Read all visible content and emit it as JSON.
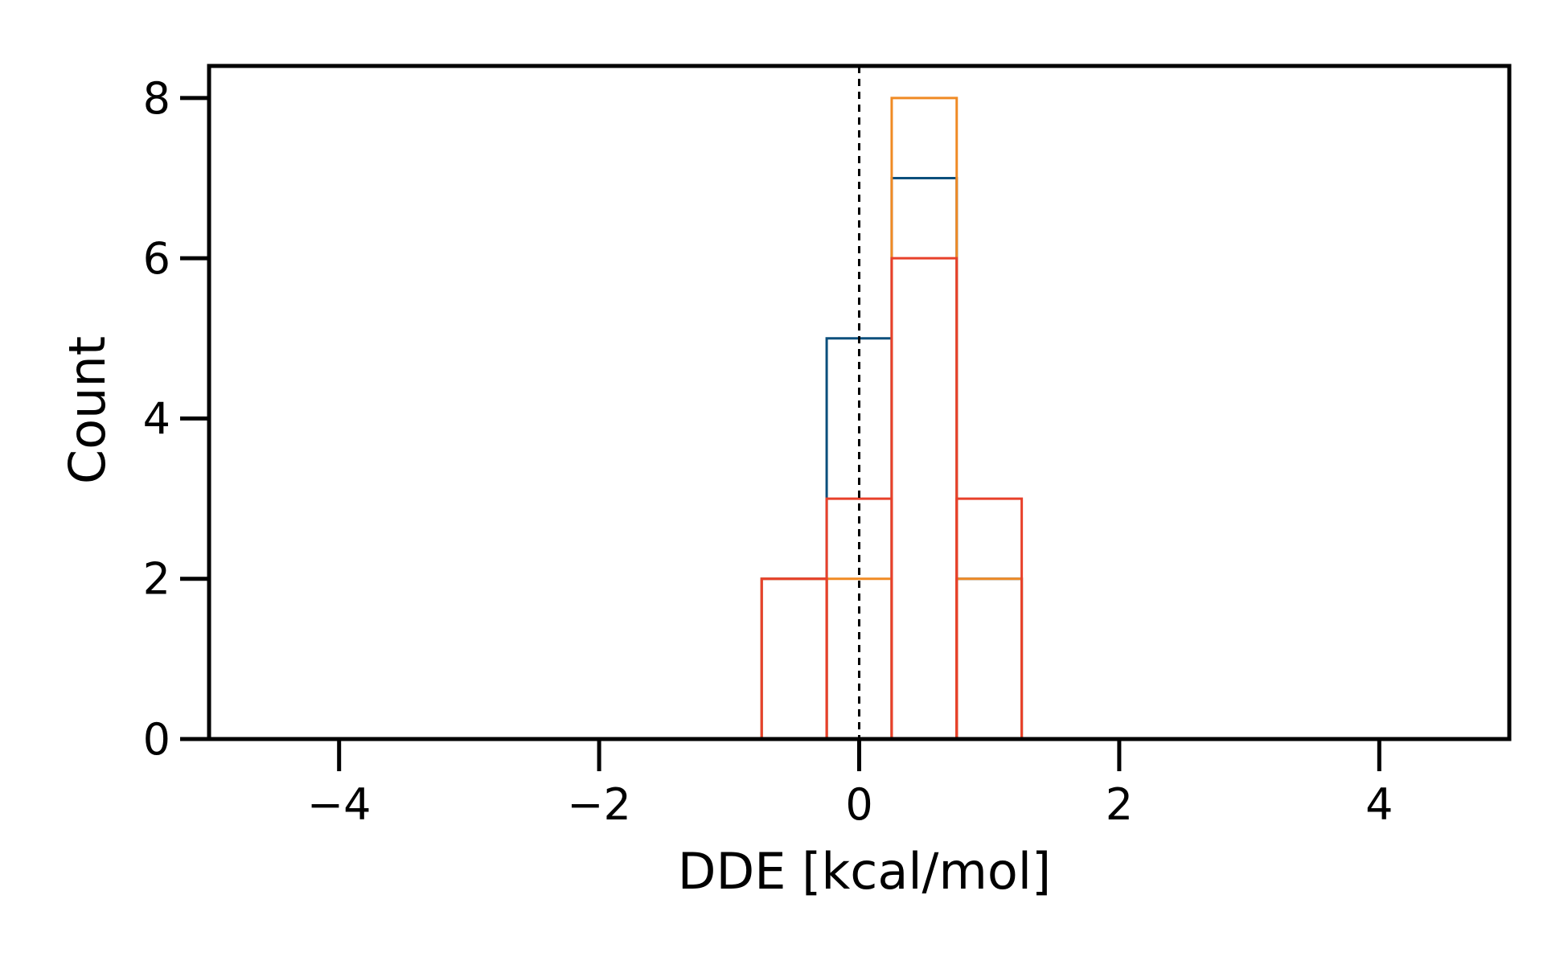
{
  "chart_data": {
    "type": "histogram",
    "title": "",
    "xlabel": "DDE [kcal/mol]",
    "ylabel": "Count",
    "xlim": [
      -5,
      5
    ],
    "ylim": [
      0,
      8.4
    ],
    "xticks": [
      -4,
      -2,
      0,
      2,
      4
    ],
    "xtick_labels": [
      "−4",
      "−2",
      "0",
      "2",
      "4"
    ],
    "yticks": [
      0,
      2,
      4,
      6,
      8
    ],
    "ytick_labels": [
      "0",
      "2",
      "4",
      "6",
      "8"
    ],
    "bin_edges": [
      -0.75,
      -0.25,
      0.25,
      0.75,
      1.25
    ],
    "series": [
      {
        "color": "#0b4f7c",
        "counts": [
          2,
          5,
          7,
          2
        ]
      },
      {
        "color": "#f08a24",
        "counts": [
          2,
          2,
          8,
          2
        ]
      },
      {
        "color": "#e8402a",
        "counts": [
          2,
          3,
          6,
          3
        ]
      }
    ],
    "reference_line": {
      "x": 0,
      "style": "dashed",
      "color": "#000000"
    },
    "grid": false,
    "legend": "none"
  }
}
